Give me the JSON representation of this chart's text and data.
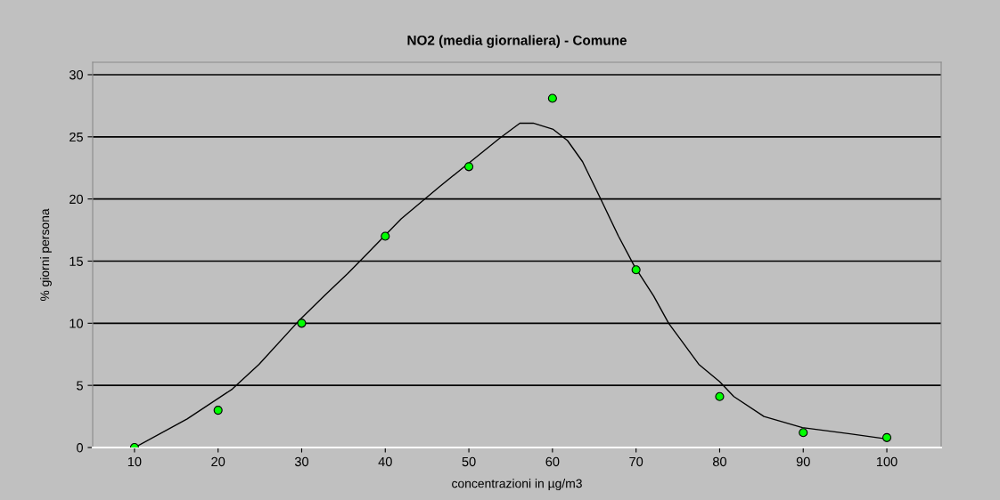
{
  "chart_data": {
    "type": "scatter",
    "title": "NO2 (media giornaliera) - Comune",
    "xlabel": "concentrazioni in µg/m3",
    "ylabel": "% giorni persona",
    "xlim": [
      5,
      106.5
    ],
    "ylim": [
      0,
      31
    ],
    "xticks": [
      10,
      20,
      30,
      40,
      50,
      60,
      70,
      80,
      90,
      100
    ],
    "yticks": [
      0,
      5,
      10,
      15,
      20,
      25,
      30
    ],
    "grid": "y",
    "marker": "circle",
    "series": [
      {
        "type": "line",
        "color": "#000000",
        "marker": "none",
        "x": [
          10.3,
          16.3,
          21.7,
          24.9,
          29.8,
          32.7,
          35.5,
          37.7,
          41.9,
          46.5,
          53.7,
          56.1,
          57.7,
          60.1,
          61.8,
          63.6,
          65.7,
          67.9,
          69.8,
          72.1,
          73.9,
          77.5,
          80.0,
          81.7,
          85.3,
          89.9,
          95.6,
          99.9
        ],
        "values": [
          0.1,
          2.3,
          4.7,
          6.7,
          10.3,
          12.2,
          14.0,
          15.5,
          18.4,
          21.0,
          24.9,
          26.1,
          26.1,
          25.6,
          24.7,
          23.0,
          20.1,
          17.0,
          14.6,
          12.2,
          10.0,
          6.7,
          5.3,
          4.1,
          2.5,
          1.6,
          1.1,
          0.7
        ]
      },
      {
        "color": "#00ff00",
        "x": [
          10,
          20,
          30,
          40,
          50,
          60,
          70,
          80,
          90,
          100
        ],
        "values": [
          0,
          3.0,
          10,
          17,
          22.6,
          28.1,
          14.3,
          4.1,
          1.2,
          0.8
        ]
      }
    ]
  }
}
